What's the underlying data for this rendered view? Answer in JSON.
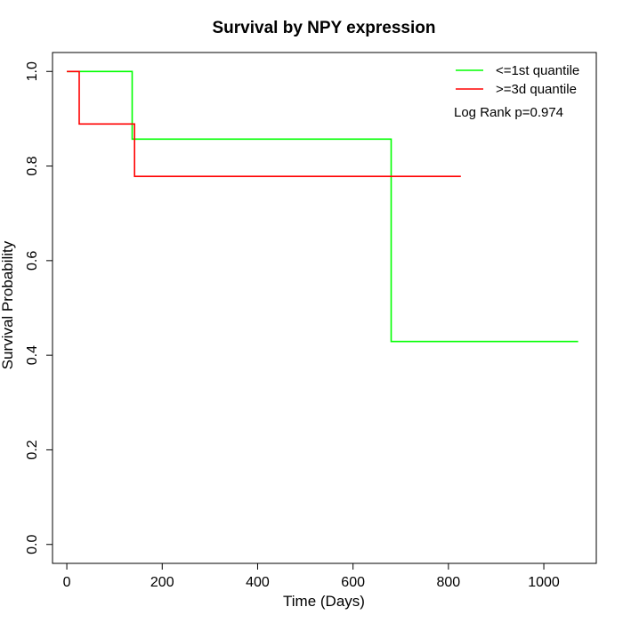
{
  "chart_data": {
    "type": "line",
    "title": "Survival by NPY expression",
    "xlabel": "Time (Days)",
    "ylabel": "Survival Probability",
    "xlim": [
      -30,
      1110
    ],
    "ylim": [
      -0.04,
      1.04
    ],
    "x_ticks": [
      0,
      200,
      400,
      600,
      800,
      1000
    ],
    "y_ticks": [
      0.0,
      0.2,
      0.4,
      0.6,
      0.8,
      1.0
    ],
    "x_tick_labels": [
      "0",
      "200",
      "400",
      "600",
      "800",
      "1000"
    ],
    "y_tick_labels": [
      "0.0",
      "0.2",
      "0.4",
      "0.6",
      "0.8",
      "1.0"
    ],
    "grid": false,
    "legend_position": "top-right",
    "annotation": "Log Rank p=0.974",
    "series": [
      {
        "name": "<=1st quantile",
        "color": "#00ff00",
        "step": true,
        "x": [
          0,
          137,
          137,
          680,
          680,
          1072
        ],
        "y": [
          1.0,
          1.0,
          0.857,
          0.857,
          0.429,
          0.429
        ]
      },
      {
        "name": ">=3d quantile",
        "color": "#ff0000",
        "step": true,
        "x": [
          0,
          26,
          26,
          142,
          142,
          826
        ],
        "y": [
          1.0,
          1.0,
          0.889,
          0.889,
          0.778,
          0.778
        ]
      }
    ]
  }
}
